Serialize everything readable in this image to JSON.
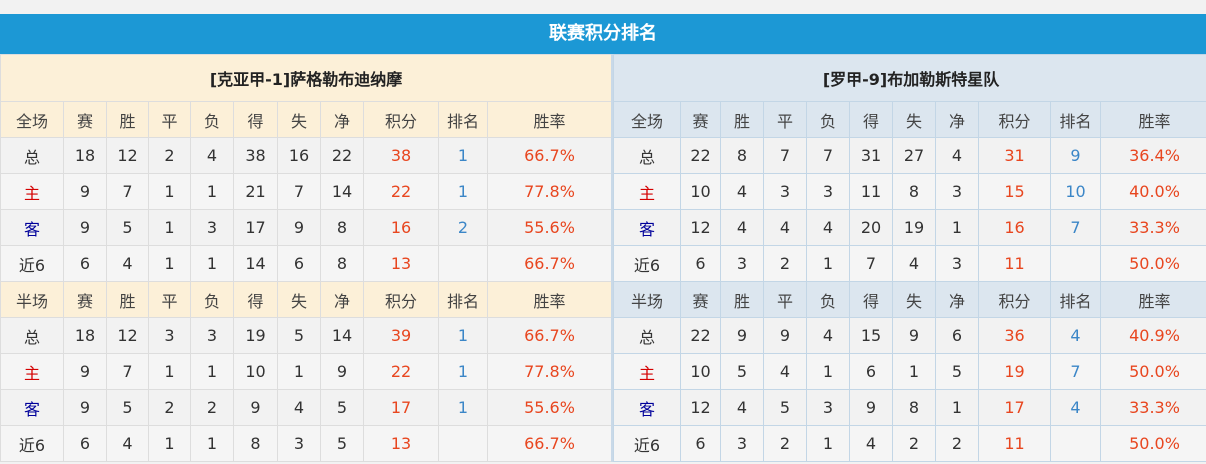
{
  "title": "联赛积分排名",
  "headers_full": [
    "全场",
    "赛",
    "胜",
    "平",
    "负",
    "得",
    "失",
    "净",
    "积分",
    "排名",
    "胜率"
  ],
  "headers_half": [
    "半场",
    "赛",
    "胜",
    "平",
    "负",
    "得",
    "失",
    "净",
    "积分",
    "排名",
    "胜率"
  ],
  "colors": {
    "title_bg": "#1c98d5",
    "points": "#e8461f",
    "rank": "#3b86c7",
    "home": "#d40000",
    "away": "#00009a"
  },
  "teams": [
    {
      "name": "[克亚甲-1]萨格勒布迪纳摩",
      "full": [
        [
          "总",
          "18",
          "12",
          "2",
          "4",
          "38",
          "16",
          "22",
          "38",
          "1",
          "66.7%"
        ],
        [
          "主",
          "9",
          "7",
          "1",
          "1",
          "21",
          "7",
          "14",
          "22",
          "1",
          "77.8%"
        ],
        [
          "客",
          "9",
          "5",
          "1",
          "3",
          "17",
          "9",
          "8",
          "16",
          "2",
          "55.6%"
        ],
        [
          "近6",
          "6",
          "4",
          "1",
          "1",
          "14",
          "6",
          "8",
          "13",
          "",
          "66.7%"
        ]
      ],
      "half": [
        [
          "总",
          "18",
          "12",
          "3",
          "3",
          "19",
          "5",
          "14",
          "39",
          "1",
          "66.7%"
        ],
        [
          "主",
          "9",
          "7",
          "1",
          "1",
          "10",
          "1",
          "9",
          "22",
          "1",
          "77.8%"
        ],
        [
          "客",
          "9",
          "5",
          "2",
          "2",
          "9",
          "4",
          "5",
          "17",
          "1",
          "55.6%"
        ],
        [
          "近6",
          "6",
          "4",
          "1",
          "1",
          "8",
          "3",
          "5",
          "13",
          "",
          "66.7%"
        ]
      ]
    },
    {
      "name": "[罗甲-9]布加勒斯特星队",
      "full": [
        [
          "总",
          "22",
          "8",
          "7",
          "7",
          "31",
          "27",
          "4",
          "31",
          "9",
          "36.4%"
        ],
        [
          "主",
          "10",
          "4",
          "3",
          "3",
          "11",
          "8",
          "3",
          "15",
          "10",
          "40.0%"
        ],
        [
          "客",
          "12",
          "4",
          "4",
          "4",
          "20",
          "19",
          "1",
          "16",
          "7",
          "33.3%"
        ],
        [
          "近6",
          "6",
          "3",
          "2",
          "1",
          "7",
          "4",
          "3",
          "11",
          "",
          "50.0%"
        ]
      ],
      "half": [
        [
          "总",
          "22",
          "9",
          "9",
          "4",
          "15",
          "9",
          "6",
          "36",
          "4",
          "40.9%"
        ],
        [
          "主",
          "10",
          "5",
          "4",
          "1",
          "6",
          "1",
          "5",
          "19",
          "7",
          "50.0%"
        ],
        [
          "客",
          "12",
          "4",
          "5",
          "3",
          "9",
          "8",
          "1",
          "17",
          "4",
          "33.3%"
        ],
        [
          "近6",
          "6",
          "3",
          "2",
          "1",
          "4",
          "2",
          "2",
          "11",
          "",
          "50.0%"
        ]
      ]
    }
  ]
}
